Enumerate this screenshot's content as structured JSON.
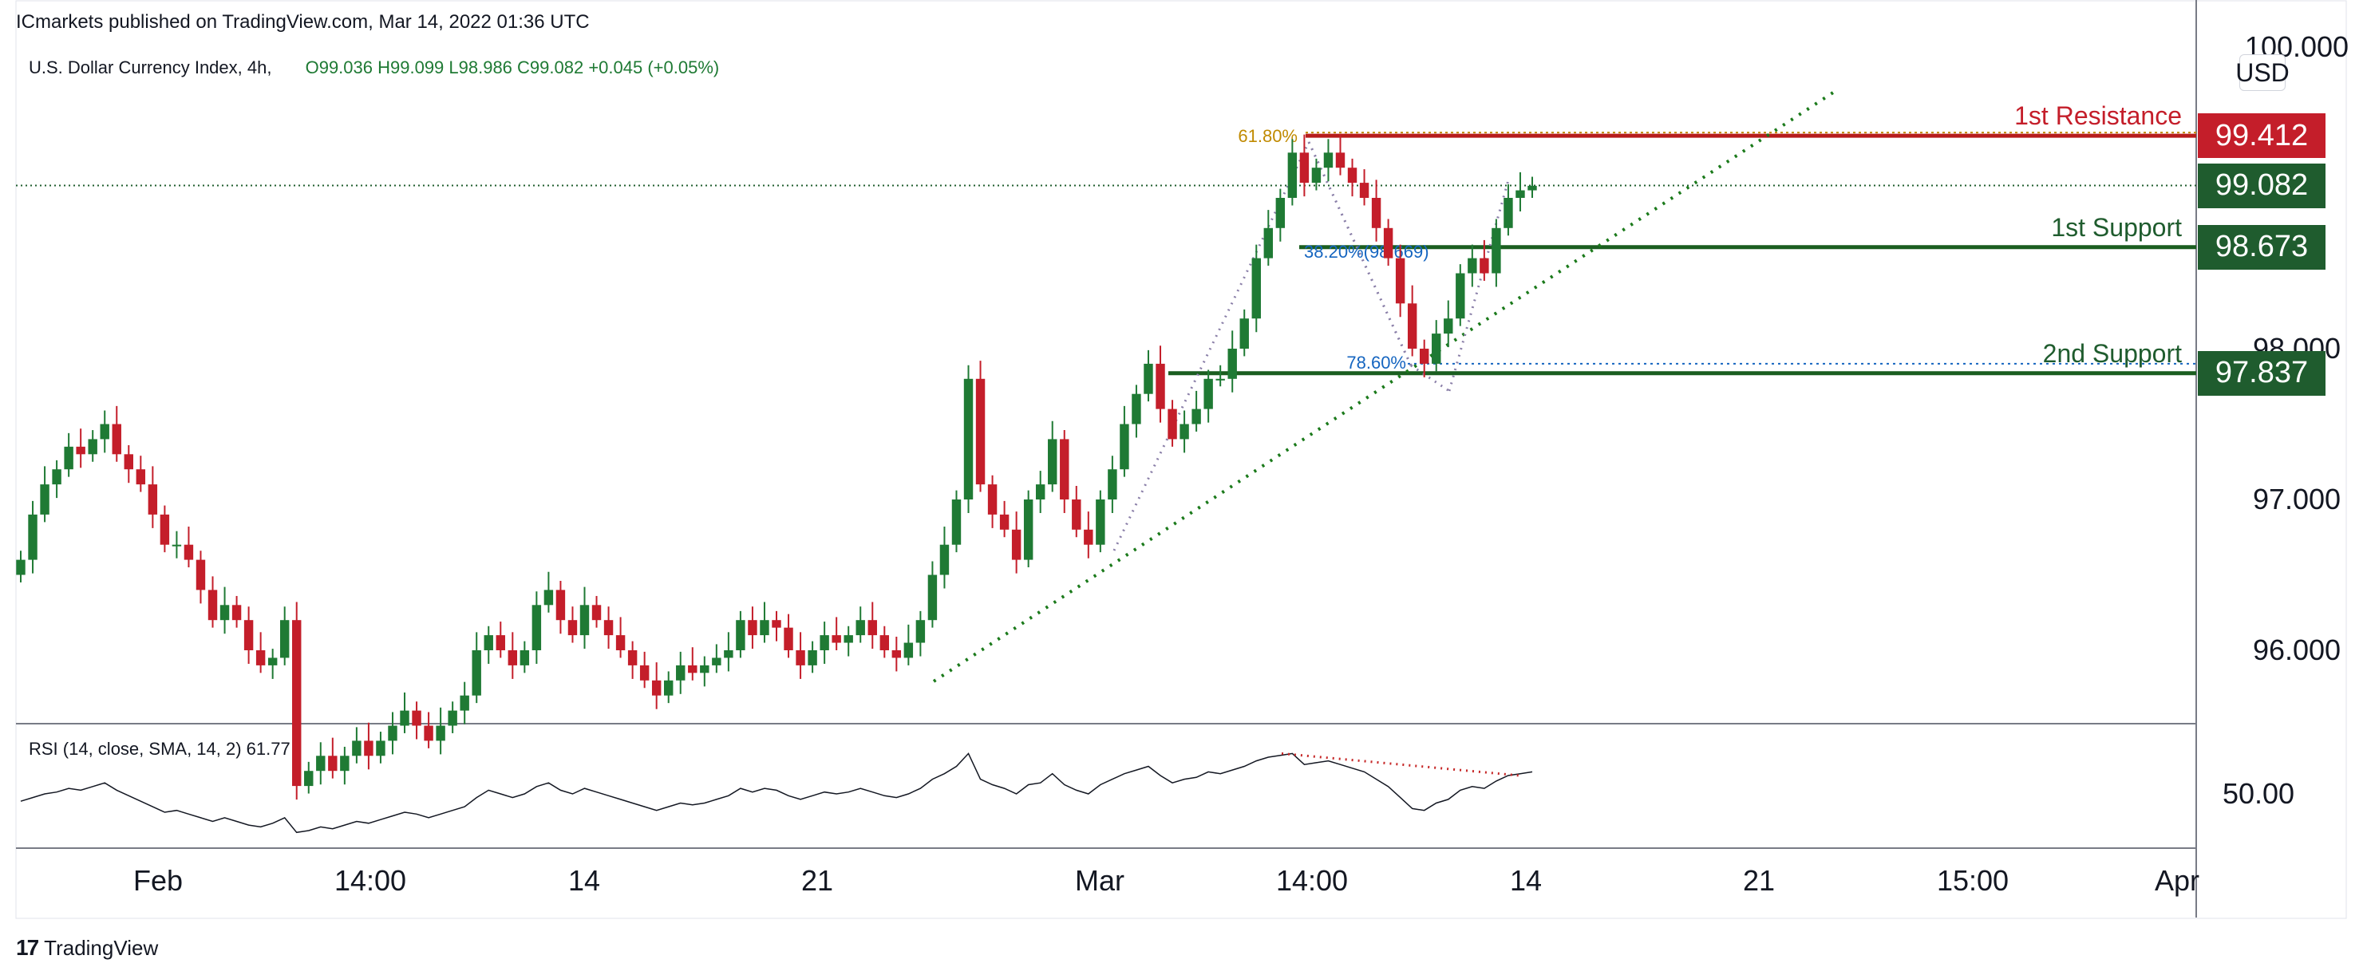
{
  "header": {
    "published_by": "ICmarkets published on TradingView.com, Mar 14, 2022 01:36 UTC"
  },
  "legend": {
    "symbol": "U.S. Dollar Currency Index, 4h,",
    "ohlc": "O99.036  H99.099  L98.986  C99.082  +0.045 (+0.05%)"
  },
  "rsi": {
    "legend": "RSI (14, close, SMA, 14, 2)  61.77",
    "level_label": "50.00"
  },
  "brand": {
    "name": "TradingView",
    "icon": "tradingview-logo-icon"
  },
  "price_axis": {
    "unit": "USD"
  },
  "colors": {
    "up": "#1f7a34",
    "down": "#c41e2a",
    "resistance": "#b71c1c",
    "support": "#1b5e20",
    "trend": "#1b7a1b",
    "fib_gold": "#c08a00",
    "fib_blue": "#1565c0",
    "rsi_line": "#131722",
    "rsi_divergence": "#c62828"
  },
  "levels": [
    {
      "name": "1st Resistance",
      "value": 99.412,
      "tag": "99.412",
      "color": "#c41e2a"
    },
    {
      "name": "",
      "value": 99.082,
      "tag": "99.082",
      "color": "#1f5c2e"
    },
    {
      "name": "1st Support",
      "value": 98.673,
      "tag": "98.673",
      "color": "#1f5c2e"
    },
    {
      "name": "2nd Support",
      "value": 97.837,
      "tag": "97.837",
      "color": "#1f5c2e"
    }
  ],
  "fib_labels": {
    "f618": "61.80%",
    "f382": "38.20%(98.669)",
    "f786": "78.60%"
  },
  "chart_data": {
    "type": "candlestick",
    "title": "U.S. Dollar Currency Index, 4h",
    "xlabel": "",
    "ylabel": "USD",
    "ylim": [
      95.5,
      100.0
    ],
    "y_ticks": [
      {
        "value": 96.0,
        "label": "96.000"
      },
      {
        "value": 97.0,
        "label": "97.000"
      },
      {
        "value": 98.0,
        "label": "98.000"
      },
      {
        "value": 100.0,
        "label": "100.000"
      }
    ],
    "x_ticks": [
      "Feb",
      "14:00",
      "14",
      "21",
      "Mar",
      "14:00",
      "14",
      "21",
      "15:00",
      "Apr"
    ],
    "close_series": [
      96.6,
      96.9,
      97.1,
      97.2,
      97.35,
      97.3,
      97.4,
      97.5,
      97.3,
      97.2,
      97.1,
      96.9,
      96.7,
      96.7,
      96.6,
      96.4,
      96.2,
      96.3,
      96.2,
      96.0,
      95.9,
      95.95,
      96.2,
      95.1,
      95.2,
      95.3,
      95.2,
      95.3,
      95.4,
      95.3,
      95.4,
      95.5,
      95.6,
      95.5,
      95.4,
      95.5,
      95.6,
      95.7,
      96.0,
      96.1,
      96.0,
      95.9,
      96.0,
      96.3,
      96.4,
      96.2,
      96.1,
      96.3,
      96.2,
      96.1,
      96.0,
      95.9,
      95.8,
      95.7,
      95.8,
      95.9,
      95.85,
      95.9,
      95.95,
      96.0,
      96.2,
      96.1,
      96.2,
      96.15,
      96.0,
      95.9,
      96.0,
      96.1,
      96.05,
      96.1,
      96.2,
      96.1,
      96.0,
      95.95,
      96.05,
      96.2,
      96.5,
      96.7,
      97.0,
      97.8,
      97.1,
      96.9,
      96.8,
      96.6,
      97.0,
      97.1,
      97.4,
      97.0,
      96.8,
      96.7,
      97.0,
      97.2,
      97.5,
      97.7,
      97.9,
      97.6,
      97.4,
      97.5,
      97.6,
      97.8,
      97.8,
      98.0,
      98.2,
      98.6,
      98.8,
      99.0,
      99.3,
      99.1,
      99.2,
      99.3,
      99.2,
      99.1,
      99.0,
      98.8,
      98.6,
      98.3,
      98.0,
      97.9,
      98.1,
      98.2,
      98.5,
      98.6,
      98.5,
      98.8,
      99.0,
      99.05,
      99.08
    ],
    "rsi_series": [
      46,
      48,
      50,
      51,
      53,
      52,
      54,
      56,
      52,
      49,
      46,
      43,
      40,
      41,
      39,
      37,
      35,
      37,
      35,
      33,
      32,
      34,
      37,
      29,
      30,
      32,
      31,
      33,
      35,
      34,
      36,
      38,
      40,
      39,
      37,
      39,
      41,
      43,
      48,
      52,
      50,
      48,
      50,
      54,
      56,
      52,
      50,
      53,
      51,
      49,
      47,
      45,
      43,
      41,
      43,
      45,
      44,
      45,
      47,
      49,
      53,
      51,
      53,
      52,
      49,
      47,
      49,
      51,
      50,
      51,
      53,
      51,
      49,
      48,
      50,
      53,
      58,
      61,
      65,
      72,
      58,
      55,
      53,
      50,
      55,
      56,
      61,
      55,
      52,
      50,
      55,
      58,
      61,
      63,
      65,
      60,
      56,
      58,
      59,
      62,
      61,
      63,
      65,
      68,
      70,
      71,
      72,
      66,
      67,
      68,
      66,
      64,
      62,
      58,
      54,
      48,
      42,
      41,
      45,
      47,
      52,
      54,
      53,
      57,
      60,
      61,
      62
    ]
  }
}
